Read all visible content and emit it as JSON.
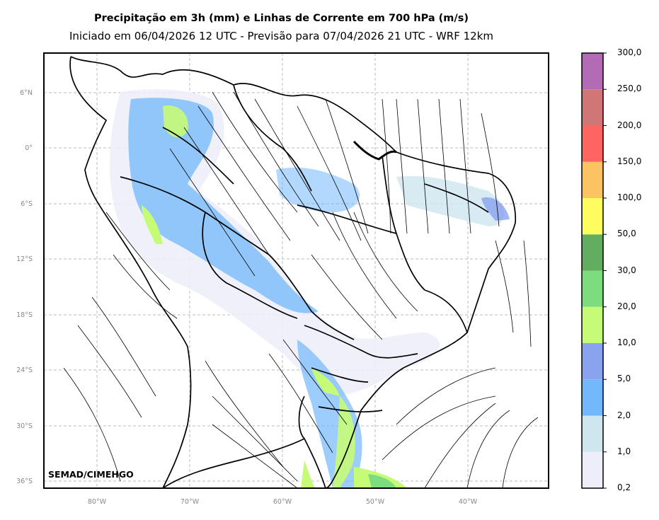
{
  "header": {
    "title": "Precipitação em 3h (mm) e Linhas de Corrente em 700 hPa (m/s)",
    "subtitle": "Iniciado em 06/04/2026 12 UTC - Previsão para 07/04/2026 21 UTC - WRF 12km"
  },
  "map": {
    "region": "South America",
    "lat_labels": [
      "6°N",
      "0°",
      "6°S",
      "12°S",
      "18°S",
      "24°S",
      "30°S",
      "36°S"
    ],
    "lon_labels": [
      "80°W",
      "70°W",
      "60°W",
      "50°W",
      "40°W"
    ],
    "credit": "SEMAD/CIMEHGO",
    "grid": true,
    "layers": [
      "precipitation shading",
      "700 hPa streamlines",
      "country and state borders"
    ]
  },
  "colorbar": {
    "labels": [
      "0,2",
      "1,0",
      "2,0",
      "5,0",
      "10,0",
      "20,0",
      "30,0",
      "50,0",
      "100,0",
      "150,0",
      "200,0",
      "250,0",
      "300,0"
    ],
    "colors": [
      "#eeeefa",
      "#cfe6ef",
      "#72b8fb",
      "#8aa3ef",
      "#c6fb78",
      "#7ddc7e",
      "#63ad61",
      "#fdfd5f",
      "#fbc460",
      "#fc6561",
      "#d17677",
      "#b36bb6"
    ]
  }
}
